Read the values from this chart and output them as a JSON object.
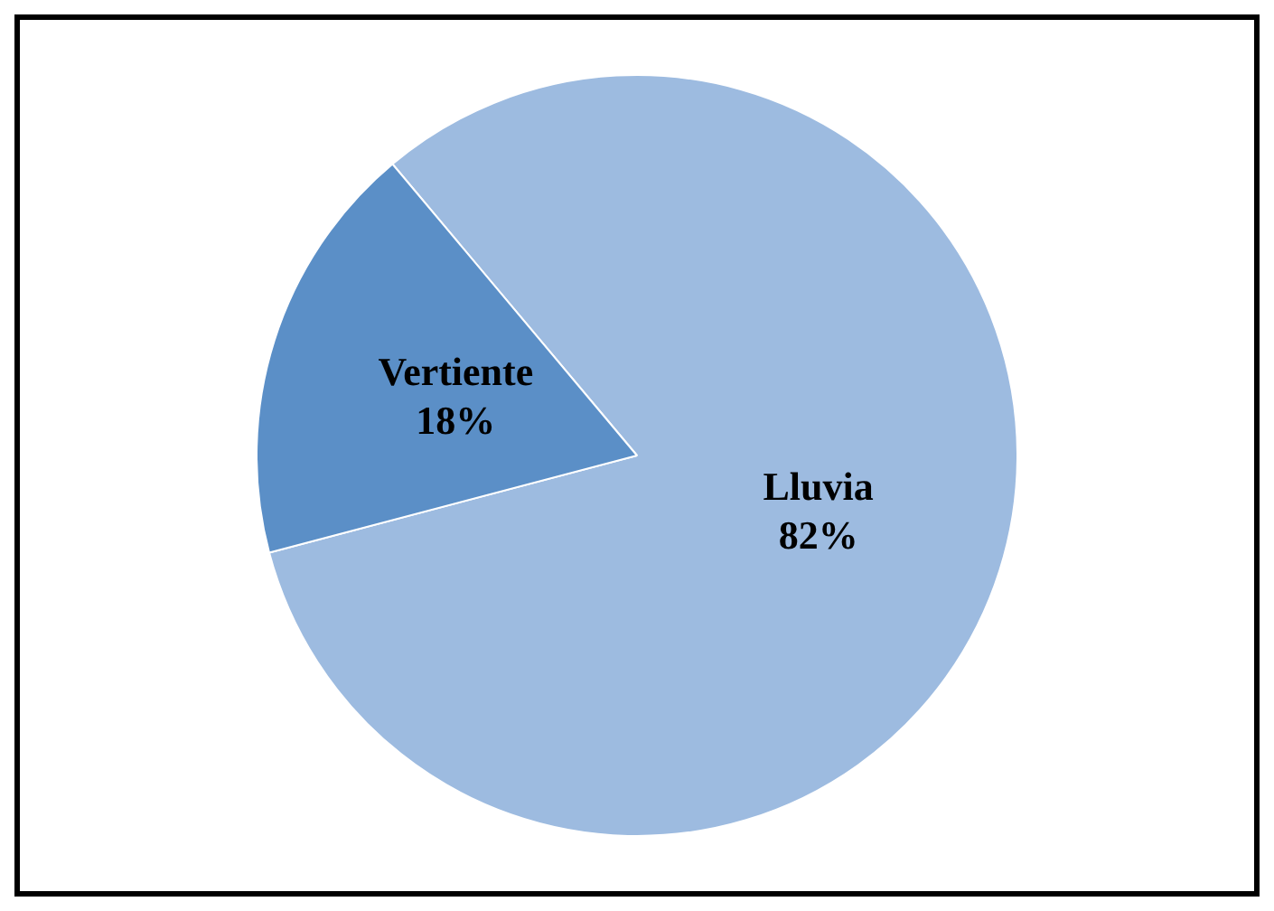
{
  "chart_data": {
    "type": "pie",
    "categories": [
      "Lluvia",
      "Vertiente"
    ],
    "values": [
      82,
      18
    ],
    "colors": [
      "#9dbbe0",
      "#5b8fc7"
    ],
    "value_labels": [
      "82%",
      "18%"
    ],
    "legend": false
  }
}
